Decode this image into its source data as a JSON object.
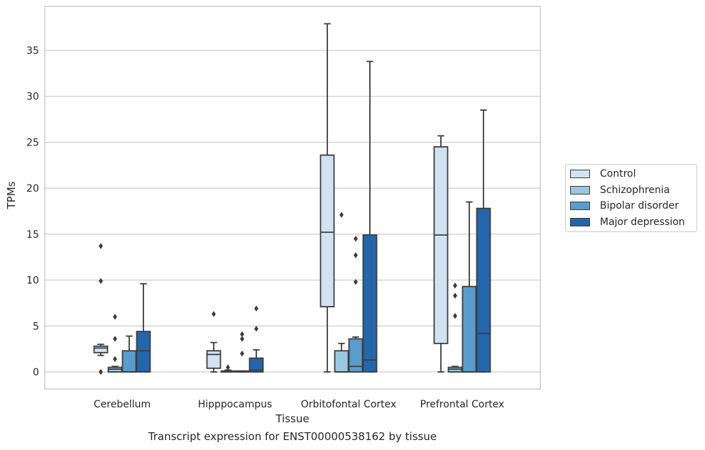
{
  "caption": "Transcript expression for ENST00000538162 by tissue",
  "chart_data": {
    "type": "box",
    "title": "",
    "xlabel": "Tissue",
    "ylabel": "TPMs",
    "ylim": [
      -1.8,
      39.5
    ],
    "yticks": [
      0,
      5,
      10,
      15,
      20,
      25,
      30,
      35
    ],
    "grid": "horizontal",
    "legend_position": "right",
    "categories": [
      "Cerebellum",
      "Hipppocampus",
      "Orbitofontal Cortex",
      "Prefrontal Cortex"
    ],
    "series": [
      {
        "name": "Control",
        "color": "#d1e2f2",
        "boxes": [
          {
            "whislo": 1.8,
            "q1": 2.1,
            "med": 2.6,
            "q3": 2.8,
            "whishi": 3.0,
            "fliers": [
              13.7,
              9.9,
              0.0
            ]
          },
          {
            "whislo": 0.0,
            "q1": 0.4,
            "med": 1.9,
            "q3": 2.3,
            "whishi": 3.2,
            "fliers": [
              6.3
            ]
          },
          {
            "whislo": 0.0,
            "q1": 7.1,
            "med": 15.2,
            "q3": 23.6,
            "whishi": 37.9,
            "fliers": []
          },
          {
            "whislo": 0.0,
            "q1": 3.1,
            "med": 14.9,
            "q3": 24.5,
            "whishi": 25.7,
            "fliers": []
          }
        ]
      },
      {
        "name": "Schizophrenia",
        "color": "#9ac8e0",
        "boxes": [
          {
            "whislo": 0.0,
            "q1": 0.0,
            "med": 0.3,
            "q3": 0.5,
            "whishi": 0.6,
            "fliers": [
              6.0,
              3.6,
              1.4
            ]
          },
          {
            "whislo": 0.0,
            "q1": 0.0,
            "med": 0.05,
            "q3": 0.1,
            "whishi": 0.2,
            "fliers": [
              0.5
            ]
          },
          {
            "whislo": 0.0,
            "q1": 0.0,
            "med": 0.0,
            "q3": 2.3,
            "whishi": 3.1,
            "fliers": [
              17.1
            ]
          },
          {
            "whislo": 0.0,
            "q1": 0.0,
            "med": 0.3,
            "q3": 0.5,
            "whishi": 0.6,
            "fliers": [
              9.4,
              8.3,
              6.1
            ]
          }
        ]
      },
      {
        "name": "Bipolar disorder",
        "color": "#5a9ccd",
        "boxes": [
          {
            "whislo": 0.0,
            "q1": 0.0,
            "med": 0.0,
            "q3": 2.3,
            "whishi": 3.9,
            "fliers": []
          },
          {
            "whislo": 0.0,
            "q1": 0.0,
            "med": 0.05,
            "q3": 0.1,
            "whishi": 0.1,
            "fliers": [
              4.1,
              3.6,
              2.0
            ]
          },
          {
            "whislo": 0.0,
            "q1": 0.0,
            "med": 0.6,
            "q3": 3.6,
            "whishi": 3.8,
            "fliers": [
              14.5,
              12.7,
              9.8
            ]
          },
          {
            "whislo": 0.0,
            "q1": 0.0,
            "med": 0.0,
            "q3": 9.3,
            "whishi": 18.5,
            "fliers": []
          }
        ]
      },
      {
        "name": "Major depression",
        "color": "#2466ab",
        "boxes": [
          {
            "whislo": 0.0,
            "q1": 0.0,
            "med": 2.3,
            "q3": 4.4,
            "whishi": 9.6,
            "fliers": []
          },
          {
            "whislo": 0.0,
            "q1": 0.0,
            "med": 0.2,
            "q3": 1.5,
            "whishi": 2.4,
            "fliers": [
              6.9,
              4.7
            ]
          },
          {
            "whislo": 0.0,
            "q1": 0.0,
            "med": 1.3,
            "q3": 14.9,
            "whishi": 33.8,
            "fliers": []
          },
          {
            "whislo": 0.0,
            "q1": 0.0,
            "med": 4.2,
            "q3": 17.8,
            "whishi": 28.5,
            "fliers": []
          }
        ]
      }
    ]
  }
}
